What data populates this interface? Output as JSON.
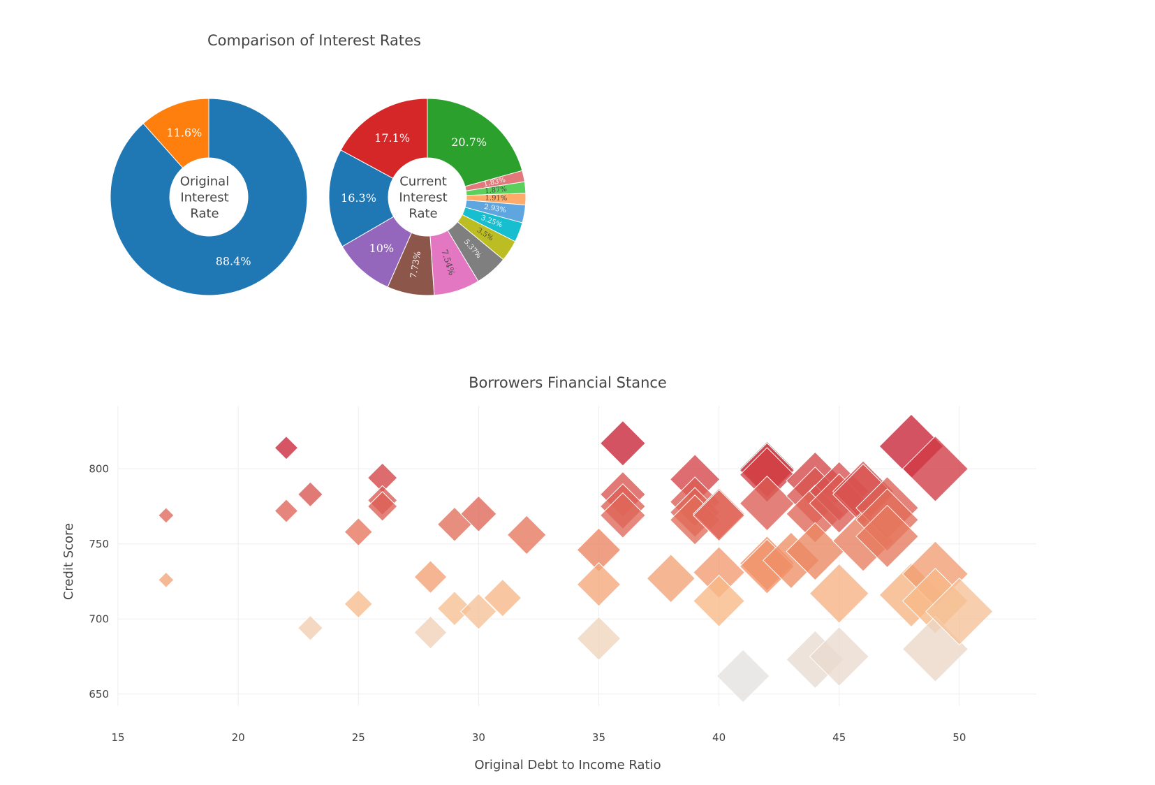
{
  "pie_title": "Comparison of Interest Rates",
  "scatter_title": "Borrowers Financial Stance",
  "chart_data": [
    {
      "type": "pie",
      "hole_label": [
        "Original",
        "Interest",
        "Rate"
      ],
      "slices": [
        {
          "label": "88.4%",
          "value": 88.4,
          "color": "#1f77b4"
        },
        {
          "label": "11.6%",
          "value": 11.6,
          "color": "#ff7f0e"
        }
      ]
    },
    {
      "type": "pie",
      "hole_label": [
        "Current",
        "Interest",
        "Rate"
      ],
      "slices": [
        {
          "label": "20.7%",
          "value": 20.7,
          "color": "#2ca02c"
        },
        {
          "label": "1.83%",
          "value": 1.83,
          "color": "#e2787c"
        },
        {
          "label": "1.87%",
          "value": 1.87,
          "color": "#5cd05c"
        },
        {
          "label": "1.91%",
          "value": 1.91,
          "color": "#ffab6a"
        },
        {
          "label": "2.93%",
          "value": 2.93,
          "color": "#5fa6e1"
        },
        {
          "label": "3.25%",
          "value": 3.25,
          "color": "#17becf"
        },
        {
          "label": "3.5%",
          "value": 3.5,
          "color": "#bcbd22"
        },
        {
          "label": "5.37%",
          "value": 5.37,
          "color": "#7f7f7f"
        },
        {
          "label": "7.54%",
          "value": 7.54,
          "color": "#e377c2"
        },
        {
          "label": "7.73%",
          "value": 7.73,
          "color": "#8c564b"
        },
        {
          "label": "10%",
          "value": 10.0,
          "color": "#9467bd"
        },
        {
          "label": "16.3%",
          "value": 16.3,
          "color": "#1f77b4"
        },
        {
          "label": "17.1%",
          "value": 17.1,
          "color": "#d62728"
        }
      ]
    },
    {
      "type": "scatter",
      "title": "Borrowers Financial Stance",
      "xlabel": "Original Debt to Income Ratio",
      "ylabel": "Credit Score",
      "xlim": [
        15,
        53.2
      ],
      "ylim": [
        642,
        842
      ],
      "xticks": [
        15,
        20,
        25,
        30,
        35,
        40,
        45,
        50
      ],
      "yticks": [
        650,
        700,
        750,
        800
      ],
      "grid": true,
      "points": [
        [
          17,
          769
        ],
        [
          17,
          726
        ],
        [
          22,
          814
        ],
        [
          22,
          772
        ],
        [
          23,
          783
        ],
        [
          23,
          694
        ],
        [
          25,
          758
        ],
        [
          25,
          710
        ],
        [
          26,
          794
        ],
        [
          26,
          779
        ],
        [
          26,
          775
        ],
        [
          28,
          728
        ],
        [
          28,
          691
        ],
        [
          29,
          763
        ],
        [
          29,
          707
        ],
        [
          30,
          770
        ],
        [
          30,
          705
        ],
        [
          31,
          714
        ],
        [
          32,
          756
        ],
        [
          35,
          746
        ],
        [
          35,
          723
        ],
        [
          35,
          687
        ],
        [
          36,
          817
        ],
        [
          36,
          783
        ],
        [
          36,
          775
        ],
        [
          36,
          769
        ],
        [
          38,
          727
        ],
        [
          39,
          793
        ],
        [
          39,
          778
        ],
        [
          39,
          771
        ],
        [
          39,
          766
        ],
        [
          40,
          770
        ],
        [
          40,
          769
        ],
        [
          40,
          731
        ],
        [
          40,
          712
        ],
        [
          41,
          662
        ],
        [
          42,
          800
        ],
        [
          42,
          799
        ],
        [
          42,
          796
        ],
        [
          42,
          777
        ],
        [
          42,
          737
        ],
        [
          42,
          735
        ],
        [
          43,
          739
        ],
        [
          44,
          792
        ],
        [
          44,
          782
        ],
        [
          44,
          770
        ],
        [
          44,
          745
        ],
        [
          44,
          673
        ],
        [
          45,
          785
        ],
        [
          45,
          777
        ],
        [
          45,
          717
        ],
        [
          45,
          675
        ],
        [
          46,
          785
        ],
        [
          46,
          783
        ],
        [
          46,
          752
        ],
        [
          47,
          774
        ],
        [
          47,
          766
        ],
        [
          47,
          755
        ],
        [
          48,
          815
        ],
        [
          48,
          716
        ],
        [
          49,
          800
        ],
        [
          49,
          730
        ],
        [
          49,
          712
        ],
        [
          49,
          680
        ],
        [
          50,
          705
        ]
      ]
    }
  ]
}
